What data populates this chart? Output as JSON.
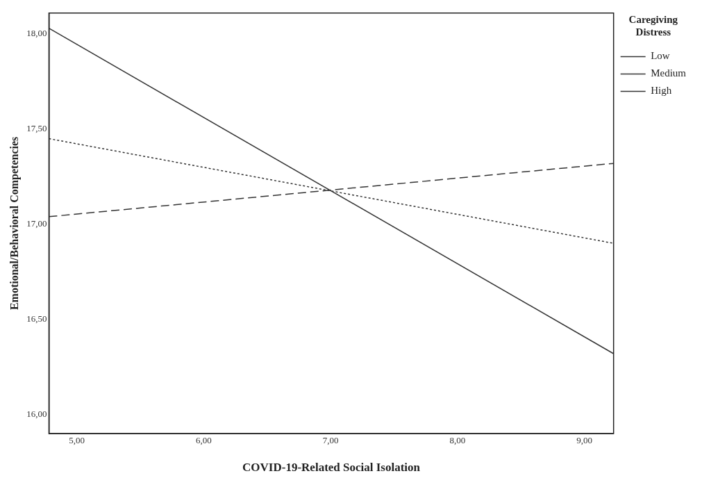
{
  "chart_data": {
    "type": "line",
    "xlabel": "COVID-19-Related Social Isolation",
    "ylabel": "Emotional/Behavioral Competencies",
    "legend_title": "Caregiving Distress",
    "legend": "top right",
    "grid": false,
    "marker": "none",
    "xlim": [
      4.78,
      9.23
    ],
    "ylim": [
      15.9,
      18.11
    ],
    "xticks": [
      {
        "value": 5,
        "label": "5,00"
      },
      {
        "value": 6,
        "label": "6,00"
      },
      {
        "value": 7,
        "label": "7,00"
      },
      {
        "value": 8,
        "label": "8,00"
      },
      {
        "value": 9,
        "label": "9,00"
      }
    ],
    "yticks": [
      {
        "value": 16,
        "label": "16,00"
      },
      {
        "value": 16.5,
        "label": "16,50"
      },
      {
        "value": 17,
        "label": "17,00"
      },
      {
        "value": 17.5,
        "label": "17,50"
      },
      {
        "value": 18,
        "label": "18,00"
      }
    ],
    "x": [
      4.78,
      9.23
    ],
    "series": [
      {
        "name": "Low",
        "color": "#333333",
        "line_style": "dashed",
        "values": [
          17.04,
          17.32
        ]
      },
      {
        "name": "Medium",
        "color": "#333333",
        "line_style": "dotted",
        "values": [
          17.45,
          16.9
        ]
      },
      {
        "name": "High",
        "color": "#333333",
        "line_style": "solid",
        "values": [
          18.03,
          16.32
        ]
      }
    ]
  }
}
